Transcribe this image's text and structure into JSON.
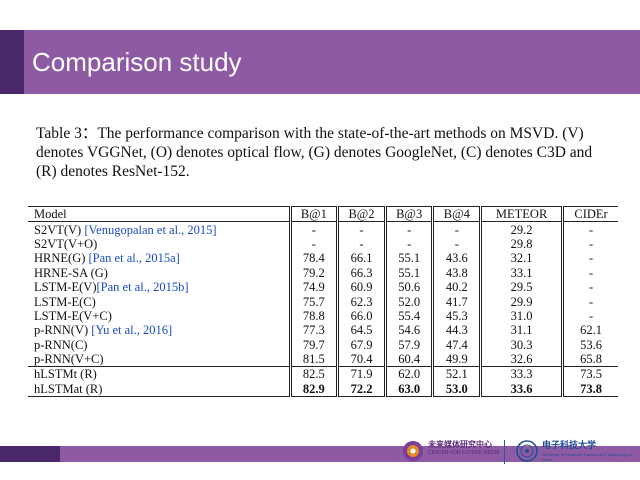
{
  "title": "Comparison study",
  "caption": "Table 3：The performance comparison with the state-of-the-art methods on MSVD. (V) denotes VGGNet, (O) denotes optical flow, (G) denotes GoogleNet, (C) denotes C3D and (R) denotes ResNet-152.",
  "table": {
    "headers": [
      "Model",
      "B@1",
      "B@2",
      "B@3",
      "B@4",
      "METEOR",
      "CIDEr"
    ],
    "rows": [
      {
        "model": "S2VT(V) ",
        "cite": "[Venugopalan et al., 2015]",
        "vals": [
          "-",
          "-",
          "-",
          "-",
          "29.2",
          "-"
        ]
      },
      {
        "model": "S2VT(V+O)",
        "cite": "",
        "vals": [
          "-",
          "-",
          "-",
          "-",
          "29.8",
          "-"
        ]
      },
      {
        "model": "HRNE(G) ",
        "cite": "[Pan et al., 2015a]",
        "vals": [
          "78.4",
          "66.1",
          "55.1",
          "43.6",
          "32.1",
          "-"
        ]
      },
      {
        "model": "HRNE-SA (G)",
        "cite": "",
        "vals": [
          "79.2",
          "66.3",
          "55.1",
          "43.8",
          "33.1",
          "-"
        ]
      },
      {
        "model": "LSTM-E(V)",
        "cite": "[Pan et al., 2015b]",
        "vals": [
          "74.9",
          "60.9",
          "50.6",
          "40.2",
          "29.5",
          "-"
        ]
      },
      {
        "model": "LSTM-E(C)",
        "cite": "",
        "vals": [
          "75.7",
          "62.3",
          "52.0",
          "41.7",
          "29.9",
          "-"
        ]
      },
      {
        "model": "LSTM-E(V+C)",
        "cite": "",
        "vals": [
          "78.8",
          "66.0",
          "55.4",
          "45.3",
          "31.0",
          "-"
        ]
      },
      {
        "model": "p-RNN(V) ",
        "cite": "[Yu et al., 2016]",
        "vals": [
          "77.3",
          "64.5",
          "54.6",
          "44.3",
          "31.1",
          "62.1"
        ]
      },
      {
        "model": "p-RNN(C)",
        "cite": "",
        "vals": [
          "79.7",
          "67.9",
          "57.9",
          "47.4",
          "30.3",
          "53.6"
        ]
      },
      {
        "model": "p-RNN(V+C)",
        "cite": "",
        "vals": [
          "81.5",
          "70.4",
          "60.4",
          "49.9",
          "32.6",
          "65.8"
        ]
      }
    ],
    "ours": [
      {
        "model": "hLSTMt (R)",
        "vals": [
          "82.5",
          "71.9",
          "62.0",
          "52.1",
          "33.3",
          "73.5"
        ]
      },
      {
        "model": "hLSTMat (R)",
        "vals": [
          "82.9",
          "72.2",
          "63.0",
          "53.0",
          "33.6",
          "73.8"
        ]
      }
    ]
  },
  "footer": {
    "logo1_cn": "未来媒体研究中心",
    "logo1_en": "CENTER FOR FUTURE MEDIA",
    "logo2_cn": "电子科技大学",
    "logo2_en": "University of Electronic Science and Technology of China"
  }
}
